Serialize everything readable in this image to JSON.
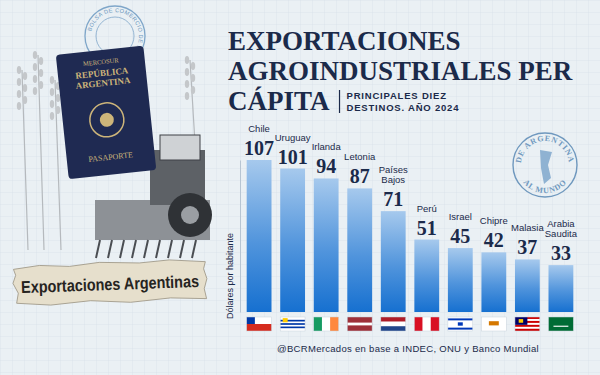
{
  "chart_data": {
    "type": "bar",
    "title": "EXPORTACIONES AGROINDUSTRIALES PER CÁPITA",
    "subtitle": "PRINCIPALES DIEZ DESTINOS. AÑO 2024",
    "y_label": "Dólares por habitante",
    "source": "@BCRMercados en base a INDEC, ONU y Banco Mundial",
    "categories": [
      "Chile",
      "Uruguay",
      "Irlanda",
      "Letonia",
      "Países Bajos",
      "Perú",
      "Israel",
      "Chipre",
      "Malasia",
      "Arabia Saudita"
    ],
    "values": [
      107,
      101,
      94,
      87,
      71,
      51,
      45,
      42,
      37,
      33
    ],
    "color": "#1670d0",
    "ylim": [
      0,
      107
    ],
    "data_labels": true,
    "tick_labels": false,
    "grid": false,
    "annotations": [
      "Exportaciones Argentinas",
      "MERCOSUR",
      "REPÚBLICA ARGENTINA",
      "PASAPORTE",
      "BOLSA DE COMERCIO DE ROSARIO",
      "DE ARGENTINA",
      "AL MUNDO"
    ]
  }
}
